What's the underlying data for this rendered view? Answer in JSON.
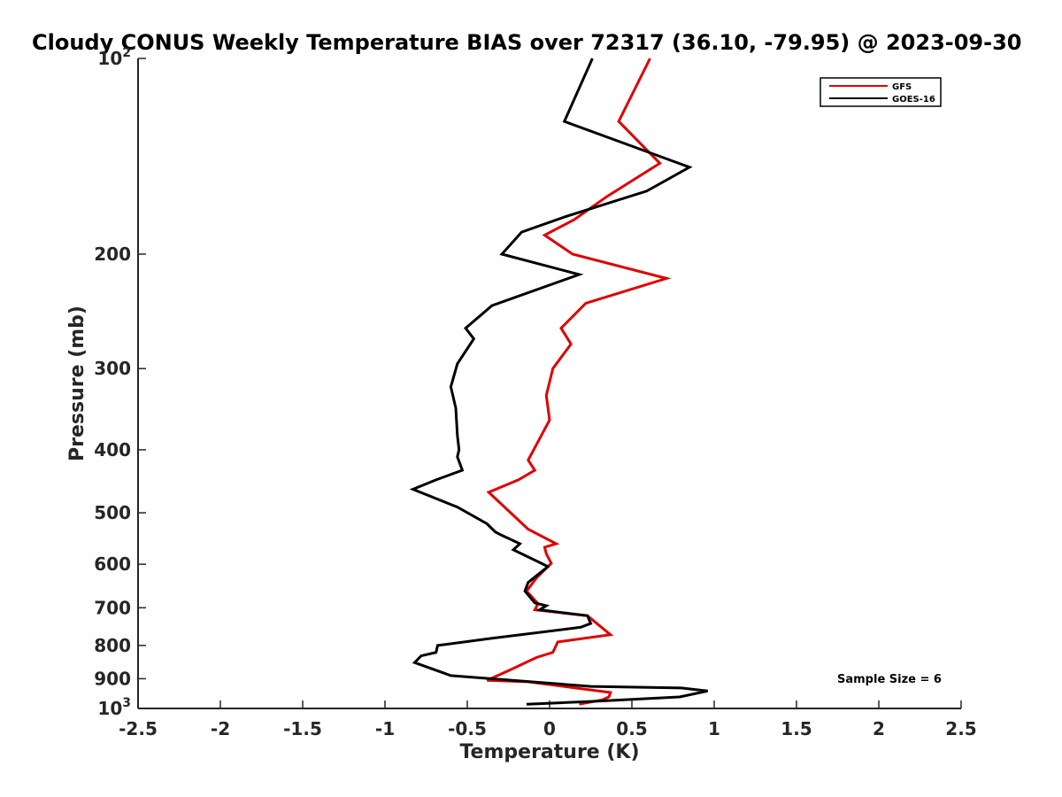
{
  "chart_data": {
    "type": "line",
    "title": "Cloudy CONUS Weekly Temperature BIAS over 72317 (36.10, -79.95) @ 2023-09-30",
    "xlabel": "Temperature (K)",
    "ylabel": "Pressure (mb)",
    "xlim": [
      -2.5,
      2.5
    ],
    "ylim": [
      1000,
      100
    ],
    "y_scale": "log",
    "x_ticks": [
      "-2.5",
      "-2",
      "-1.5",
      "-1",
      "-0.5",
      "0",
      "0.5",
      "1",
      "1.5",
      "2",
      "2.5"
    ],
    "y_ticks": [
      {
        "value": 100,
        "base": "10",
        "exp": "2"
      },
      {
        "value": 200,
        "label": "200"
      },
      {
        "value": 300,
        "label": "300"
      },
      {
        "value": 400,
        "label": "400"
      },
      {
        "value": 500,
        "label": "500"
      },
      {
        "value": 600,
        "label": "600"
      },
      {
        "value": 700,
        "label": "700"
      },
      {
        "value": 800,
        "label": "800"
      },
      {
        "value": 900,
        "label": "900"
      },
      {
        "value": 1000,
        "base": "10",
        "exp": "3"
      }
    ],
    "legend_position": "top-right",
    "annotation": "Sample Size = 6",
    "series": [
      {
        "name": "GFS",
        "color": "#e00000",
        "points": [
          [
            0.61,
            100
          ],
          [
            0.42,
            125
          ],
          [
            0.67,
            145
          ],
          [
            0.35,
            163
          ],
          [
            0.15,
            177
          ],
          [
            -0.03,
            187
          ],
          [
            0.14,
            200
          ],
          [
            0.71,
            218
          ],
          [
            0.22,
            238
          ],
          [
            0.07,
            260
          ],
          [
            0.13,
            275
          ],
          [
            0.02,
            300
          ],
          [
            -0.02,
            330
          ],
          [
            0.0,
            360
          ],
          [
            -0.13,
            415
          ],
          [
            -0.09,
            430
          ],
          [
            -0.19,
            445
          ],
          [
            -0.37,
            465
          ],
          [
            -0.13,
            530
          ],
          [
            0.04,
            558
          ],
          [
            -0.03,
            565
          ],
          [
            -0.02,
            578
          ],
          [
            0.01,
            598
          ],
          [
            -0.08,
            630
          ],
          [
            -0.14,
            660
          ],
          [
            -0.07,
            690
          ],
          [
            -0.09,
            705
          ],
          [
            0.23,
            720
          ],
          [
            0.37,
            770
          ],
          [
            0.05,
            790
          ],
          [
            0.02,
            820
          ],
          [
            -0.08,
            835
          ],
          [
            -0.25,
            875
          ],
          [
            -0.38,
            905
          ],
          [
            -0.13,
            910
          ],
          [
            0.37,
            945
          ],
          [
            0.36,
            960
          ],
          [
            0.32,
            970
          ],
          [
            0.18,
            985
          ]
        ]
      },
      {
        "name": "GOES-16",
        "color": "#000000",
        "points": [
          [
            0.26,
            100
          ],
          [
            0.09,
            125
          ],
          [
            0.85,
            147
          ],
          [
            0.59,
            160
          ],
          [
            0.1,
            175
          ],
          [
            -0.17,
            185
          ],
          [
            -0.29,
            200
          ],
          [
            0.18,
            215
          ],
          [
            -0.35,
            240
          ],
          [
            -0.51,
            260
          ],
          [
            -0.46,
            270
          ],
          [
            -0.56,
            295
          ],
          [
            -0.6,
            320
          ],
          [
            -0.57,
            345
          ],
          [
            -0.56,
            380
          ],
          [
            -0.55,
            400
          ],
          [
            -0.56,
            410
          ],
          [
            -0.53,
            430
          ],
          [
            -0.69,
            445
          ],
          [
            -0.83,
            460
          ],
          [
            -0.56,
            490
          ],
          [
            -0.38,
            520
          ],
          [
            -0.33,
            535
          ],
          [
            -0.3,
            540
          ],
          [
            -0.18,
            558
          ],
          [
            -0.22,
            570
          ],
          [
            -0.05,
            598
          ],
          [
            -0.01,
            605
          ],
          [
            -0.13,
            640
          ],
          [
            -0.15,
            660
          ],
          [
            -0.09,
            688
          ],
          [
            -0.02,
            695
          ],
          [
            -0.06,
            705
          ],
          [
            0.23,
            720
          ],
          [
            0.25,
            740
          ],
          [
            0.19,
            750
          ],
          [
            -0.35,
            780
          ],
          [
            -0.68,
            800
          ],
          [
            -0.69,
            820
          ],
          [
            -0.78,
            830
          ],
          [
            -0.82,
            850
          ],
          [
            -0.6,
            890
          ],
          [
            0.25,
            925
          ],
          [
            0.8,
            930
          ],
          [
            0.96,
            940
          ],
          [
            0.79,
            960
          ],
          [
            0.28,
            975
          ],
          [
            -0.14,
            985
          ]
        ]
      }
    ]
  }
}
